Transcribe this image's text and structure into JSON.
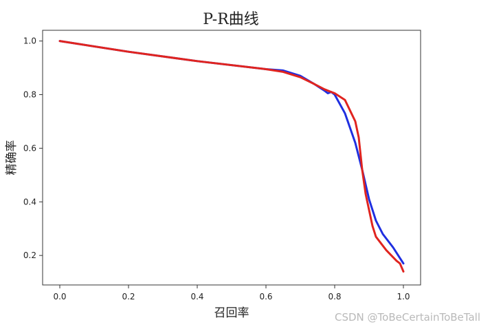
{
  "chart_data": {
    "type": "line",
    "title": "P-R曲线",
    "xlabel": "召回率",
    "ylabel": "精确率",
    "xlim": [
      -0.05,
      1.05
    ],
    "ylim": [
      0.09,
      1.04
    ],
    "xticks": [
      0.0,
      0.2,
      0.4,
      0.6,
      0.8,
      1.0
    ],
    "xtick_labels": [
      "0.0",
      "0.2",
      "0.4",
      "0.6",
      "0.8",
      "1.0"
    ],
    "yticks": [
      0.2,
      0.4,
      0.6,
      0.8,
      1.0
    ],
    "ytick_labels": [
      "0.2",
      "0.4",
      "0.6",
      "0.8",
      "1.0"
    ],
    "grid": false,
    "series": [
      {
        "color": "#1f2fe0",
        "x": [
          0.0,
          0.2,
          0.4,
          0.6,
          0.65,
          0.7,
          0.74,
          0.77,
          0.78,
          0.79,
          0.8,
          0.83,
          0.86,
          0.88,
          0.9,
          0.92,
          0.94,
          0.97,
          1.0
        ],
        "y": [
          1.0,
          0.96,
          0.925,
          0.895,
          0.89,
          0.87,
          0.84,
          0.815,
          0.805,
          0.81,
          0.8,
          0.73,
          0.62,
          0.52,
          0.41,
          0.33,
          0.28,
          0.23,
          0.17
        ]
      },
      {
        "color": "#e0241f",
        "x": [
          0.0,
          0.2,
          0.4,
          0.6,
          0.65,
          0.7,
          0.74,
          0.77,
          0.79,
          0.8,
          0.83,
          0.86,
          0.87,
          0.88,
          0.89,
          0.91,
          0.92,
          0.95,
          0.98,
          0.99,
          1.0
        ],
        "y": [
          1.0,
          0.96,
          0.925,
          0.895,
          0.885,
          0.865,
          0.84,
          0.82,
          0.81,
          0.805,
          0.78,
          0.7,
          0.64,
          0.52,
          0.43,
          0.31,
          0.27,
          0.22,
          0.18,
          0.17,
          0.14
        ]
      }
    ]
  },
  "watermark": "CSDN @ToBeCertainToBeTall"
}
